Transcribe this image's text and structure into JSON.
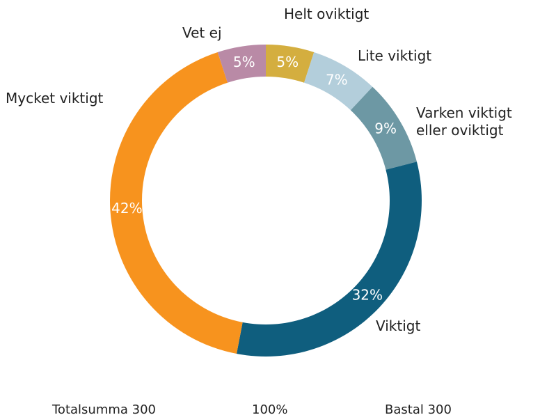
{
  "chart_data": {
    "type": "pie",
    "categories": [
      "Helt oviktigt",
      "Lite viktigt",
      "Varken viktigt eller oviktigt",
      "Viktigt",
      "Mycket viktigt",
      "Vet ej"
    ],
    "values": [
      5,
      7,
      9,
      32,
      42,
      5
    ],
    "value_labels": [
      "5%",
      "7%",
      "9%",
      "32%",
      "42%",
      "5%"
    ],
    "colors": [
      "#d4ae3f",
      "#b3cedb",
      "#6d98a4",
      "#0f5e7e",
      "#f7931e",
      "#b98aa6"
    ],
    "footer": [
      "Totalsumma 300",
      "100%",
      "Bastal 300"
    ]
  }
}
